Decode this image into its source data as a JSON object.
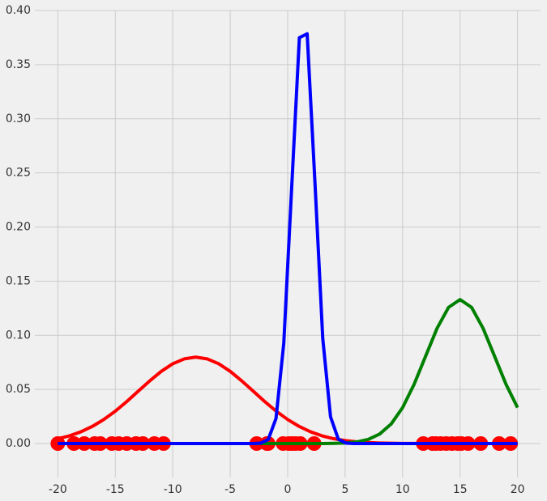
{
  "chart_data": {
    "type": "line",
    "xlim": [
      -22,
      22
    ],
    "ylim": [
      -0.0314,
      0.4
    ],
    "xticks": [
      -20,
      -15,
      -10,
      -5,
      0,
      5,
      10,
      15,
      20
    ],
    "yticks": [
      {
        "value": 0,
        "label": "0.00"
      },
      0.05,
      {
        "value": 0.1,
        "label": "0.10"
      },
      0.15,
      {
        "value": 0.2,
        "label": "0.20"
      },
      0.25,
      {
        "value": 0.3,
        "label": "0.30"
      },
      0.35,
      {
        "value": 0.4,
        "label": "0.40"
      }
    ],
    "grid": true,
    "series": [
      {
        "type": "scatter",
        "color": "#ff0000",
        "x": [
          -20.0,
          -18.6,
          -17.7,
          -16.8,
          -16.3,
          -15.3,
          -14.7,
          -14.0,
          -13.2,
          -12.6,
          -11.6,
          -10.8,
          -2.7,
          -1.8,
          -1.7,
          -0.4,
          0.1,
          0.4,
          0.7,
          1.1,
          2.3,
          11.8,
          12.6,
          12.9,
          13.3,
          13.8,
          14.3,
          14.8,
          15.1,
          15.7,
          16.8,
          18.4,
          19.4
        ],
        "values": [
          0,
          0,
          0,
          0,
          0,
          0,
          0,
          0,
          0,
          0,
          0,
          0,
          0,
          0,
          0,
          0,
          0,
          0,
          0,
          0,
          0,
          0,
          0,
          0,
          0,
          0,
          0,
          0,
          0,
          0,
          0,
          0,
          0
        ]
      },
      {
        "type": "line",
        "color": "#ff0000",
        "x": [
          -20,
          -19,
          -18,
          -17,
          -16,
          -15,
          -14,
          -13,
          -12,
          -11,
          -10,
          -9,
          -8,
          -7,
          -6,
          -5,
          -4,
          -3,
          -2,
          -1,
          0,
          1,
          2,
          3,
          4,
          5,
          6,
          7,
          8,
          9,
          10,
          11,
          12,
          13,
          14,
          15,
          16,
          17,
          18,
          19,
          20
        ],
        "values": [
          0.00448,
          0.00709,
          0.0108,
          0.0158,
          0.0222,
          0.0299,
          0.0388,
          0.0484,
          0.0579,
          0.0667,
          0.0737,
          0.0782,
          0.0798,
          0.0782,
          0.0737,
          0.0667,
          0.0579,
          0.0484,
          0.0388,
          0.0299,
          0.0222,
          0.0158,
          0.0108,
          0.00709,
          0.00448,
          0.00272,
          0.00158,
          0.00089,
          0.00048,
          0.00025,
          0.00012,
          6e-05,
          3e-05,
          0,
          0,
          0,
          0,
          0,
          0,
          0,
          0
        ]
      },
      {
        "type": "line",
        "color": "#008000",
        "x": [
          -20,
          -19,
          -18,
          -17,
          -16,
          -15,
          -14,
          -13,
          -12,
          -11,
          -10,
          -9,
          -8,
          -7,
          -6,
          -5,
          -4,
          -3,
          -2,
          -1,
          0,
          1,
          2,
          3,
          4,
          5,
          6,
          7,
          8,
          9,
          10,
          11,
          12,
          13,
          14,
          15,
          16,
          17,
          18,
          19,
          20
        ],
        "values": [
          0,
          0,
          0,
          0,
          0,
          0,
          0,
          0,
          0,
          0,
          0,
          0,
          0,
          0,
          0,
          0,
          0,
          0,
          0,
          0,
          0,
          0,
          0,
          4e-05,
          0.00016,
          0.00051,
          0.00148,
          0.0038,
          0.00874,
          0.018,
          0.0332,
          0.0547,
          0.0807,
          0.1065,
          0.1258,
          0.133,
          0.1258,
          0.1065,
          0.0807,
          0.0547,
          0.0332
        ]
      },
      {
        "type": "line",
        "color": "#0000ff",
        "x": [
          -20,
          -3.051,
          -2.373,
          -1.695,
          -1.017,
          -0.339,
          0.339,
          1.017,
          1.695,
          2.373,
          3.051,
          3.729,
          4.407,
          5.085,
          5.763,
          20
        ],
        "values": [
          0,
          2e-05,
          0.00036,
          0.00364,
          0.0231,
          0.0927,
          0.2346,
          0.3749,
          0.3785,
          0.2412,
          0.0971,
          0.0247,
          0.00397,
          0.0004,
          3e-05,
          0
        ]
      }
    ]
  }
}
